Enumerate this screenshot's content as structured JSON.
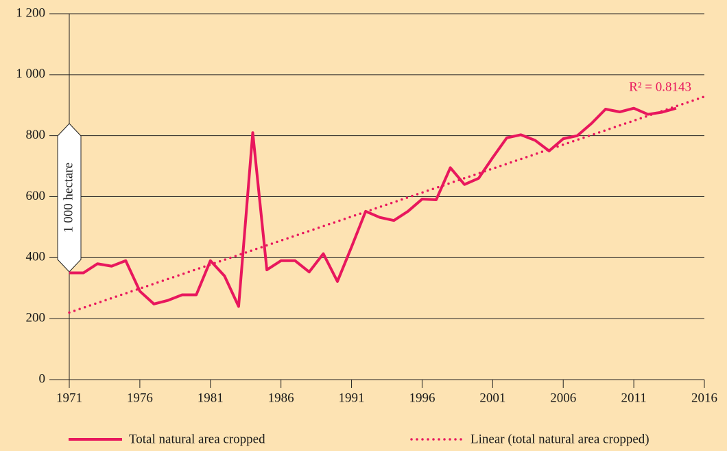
{
  "chart_data": {
    "type": "line",
    "y_label": "1 000 hectare",
    "annotation": "R² = 0.8143",
    "series": [
      {
        "name": "Total natural area cropped",
        "color": "#e8175d",
        "style": "solid",
        "x": [
          1971,
          1972,
          1973,
          1974,
          1975,
          1976,
          1977,
          1978,
          1979,
          1980,
          1981,
          1982,
          1983,
          1984,
          1985,
          1986,
          1987,
          1988,
          1989,
          1990,
          1991,
          1992,
          1993,
          1994,
          1995,
          1996,
          1997,
          1998,
          1999,
          2000,
          2001,
          2002,
          2003,
          2004,
          2005,
          2006,
          2007,
          2008,
          2009,
          2010,
          2011,
          2012,
          2013,
          2014
        ],
        "values": [
          350,
          350,
          380,
          372,
          390,
          290,
          248,
          260,
          278,
          278,
          390,
          340,
          240,
          810,
          360,
          390,
          390,
          353,
          413,
          322,
          435,
          552,
          532,
          522,
          552,
          592,
          590,
          695,
          640,
          660,
          728,
          793,
          803,
          785,
          750,
          790,
          800,
          840,
          887,
          878,
          890,
          870,
          877,
          890
        ]
      },
      {
        "name": "Linear (total natural area cropped)",
        "color": "#e8175d",
        "style": "dotted",
        "x": [
          1971,
          2016
        ],
        "values": [
          220,
          928
        ]
      }
    ],
    "xlim": [
      1971,
      2016
    ],
    "xticks": [
      1971,
      1976,
      1981,
      1986,
      1991,
      1996,
      2001,
      2006,
      2011,
      2016
    ],
    "ylim": [
      0,
      1200
    ],
    "yticks": [
      0,
      200,
      400,
      600,
      800,
      {
        "value": 1000,
        "label": "1 000"
      },
      {
        "value": 1200,
        "label": "1 200"
      }
    ],
    "grid": true
  }
}
